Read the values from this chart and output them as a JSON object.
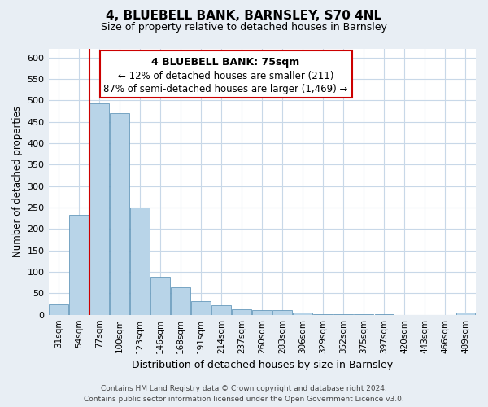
{
  "title": "4, BLUEBELL BANK, BARNSLEY, S70 4NL",
  "subtitle": "Size of property relative to detached houses in Barnsley",
  "xlabel": "Distribution of detached houses by size in Barnsley",
  "ylabel": "Number of detached properties",
  "bar_color": "#b8d4e8",
  "bar_edge_color": "#6699bb",
  "marker_color": "#cc0000",
  "categories": [
    "31sqm",
    "54sqm",
    "77sqm",
    "100sqm",
    "123sqm",
    "146sqm",
    "168sqm",
    "191sqm",
    "214sqm",
    "237sqm",
    "260sqm",
    "283sqm",
    "306sqm",
    "329sqm",
    "352sqm",
    "375sqm",
    "397sqm",
    "420sqm",
    "443sqm",
    "466sqm",
    "489sqm"
  ],
  "values": [
    25,
    233,
    493,
    470,
    250,
    88,
    63,
    31,
    23,
    13,
    10,
    10,
    5,
    2,
    1,
    1,
    1,
    0,
    0,
    0,
    5
  ],
  "marker_bin_index": 2,
  "annotation_title": "4 BLUEBELL BANK: 75sqm",
  "annotation_line1": "← 12% of detached houses are smaller (211)",
  "annotation_line2": "87% of semi-detached houses are larger (1,469) →",
  "ylim": [
    0,
    620
  ],
  "yticks": [
    0,
    50,
    100,
    150,
    200,
    250,
    300,
    350,
    400,
    450,
    500,
    550,
    600
  ],
  "footer_line1": "Contains HM Land Registry data © Crown copyright and database right 2024.",
  "footer_line2": "Contains public sector information licensed under the Open Government Licence v3.0.",
  "bg_color": "#e8eef4",
  "plot_bg_color": "#ffffff",
  "grid_color": "#c8d8e8",
  "title_fontsize": 11,
  "subtitle_fontsize": 9,
  "xlabel_fontsize": 9,
  "ylabel_fontsize": 8.5,
  "tick_fontsize": 8,
  "xtick_fontsize": 7.5,
  "annotation_title_fontsize": 9,
  "annotation_text_fontsize": 8.5,
  "footer_fontsize": 6.5
}
